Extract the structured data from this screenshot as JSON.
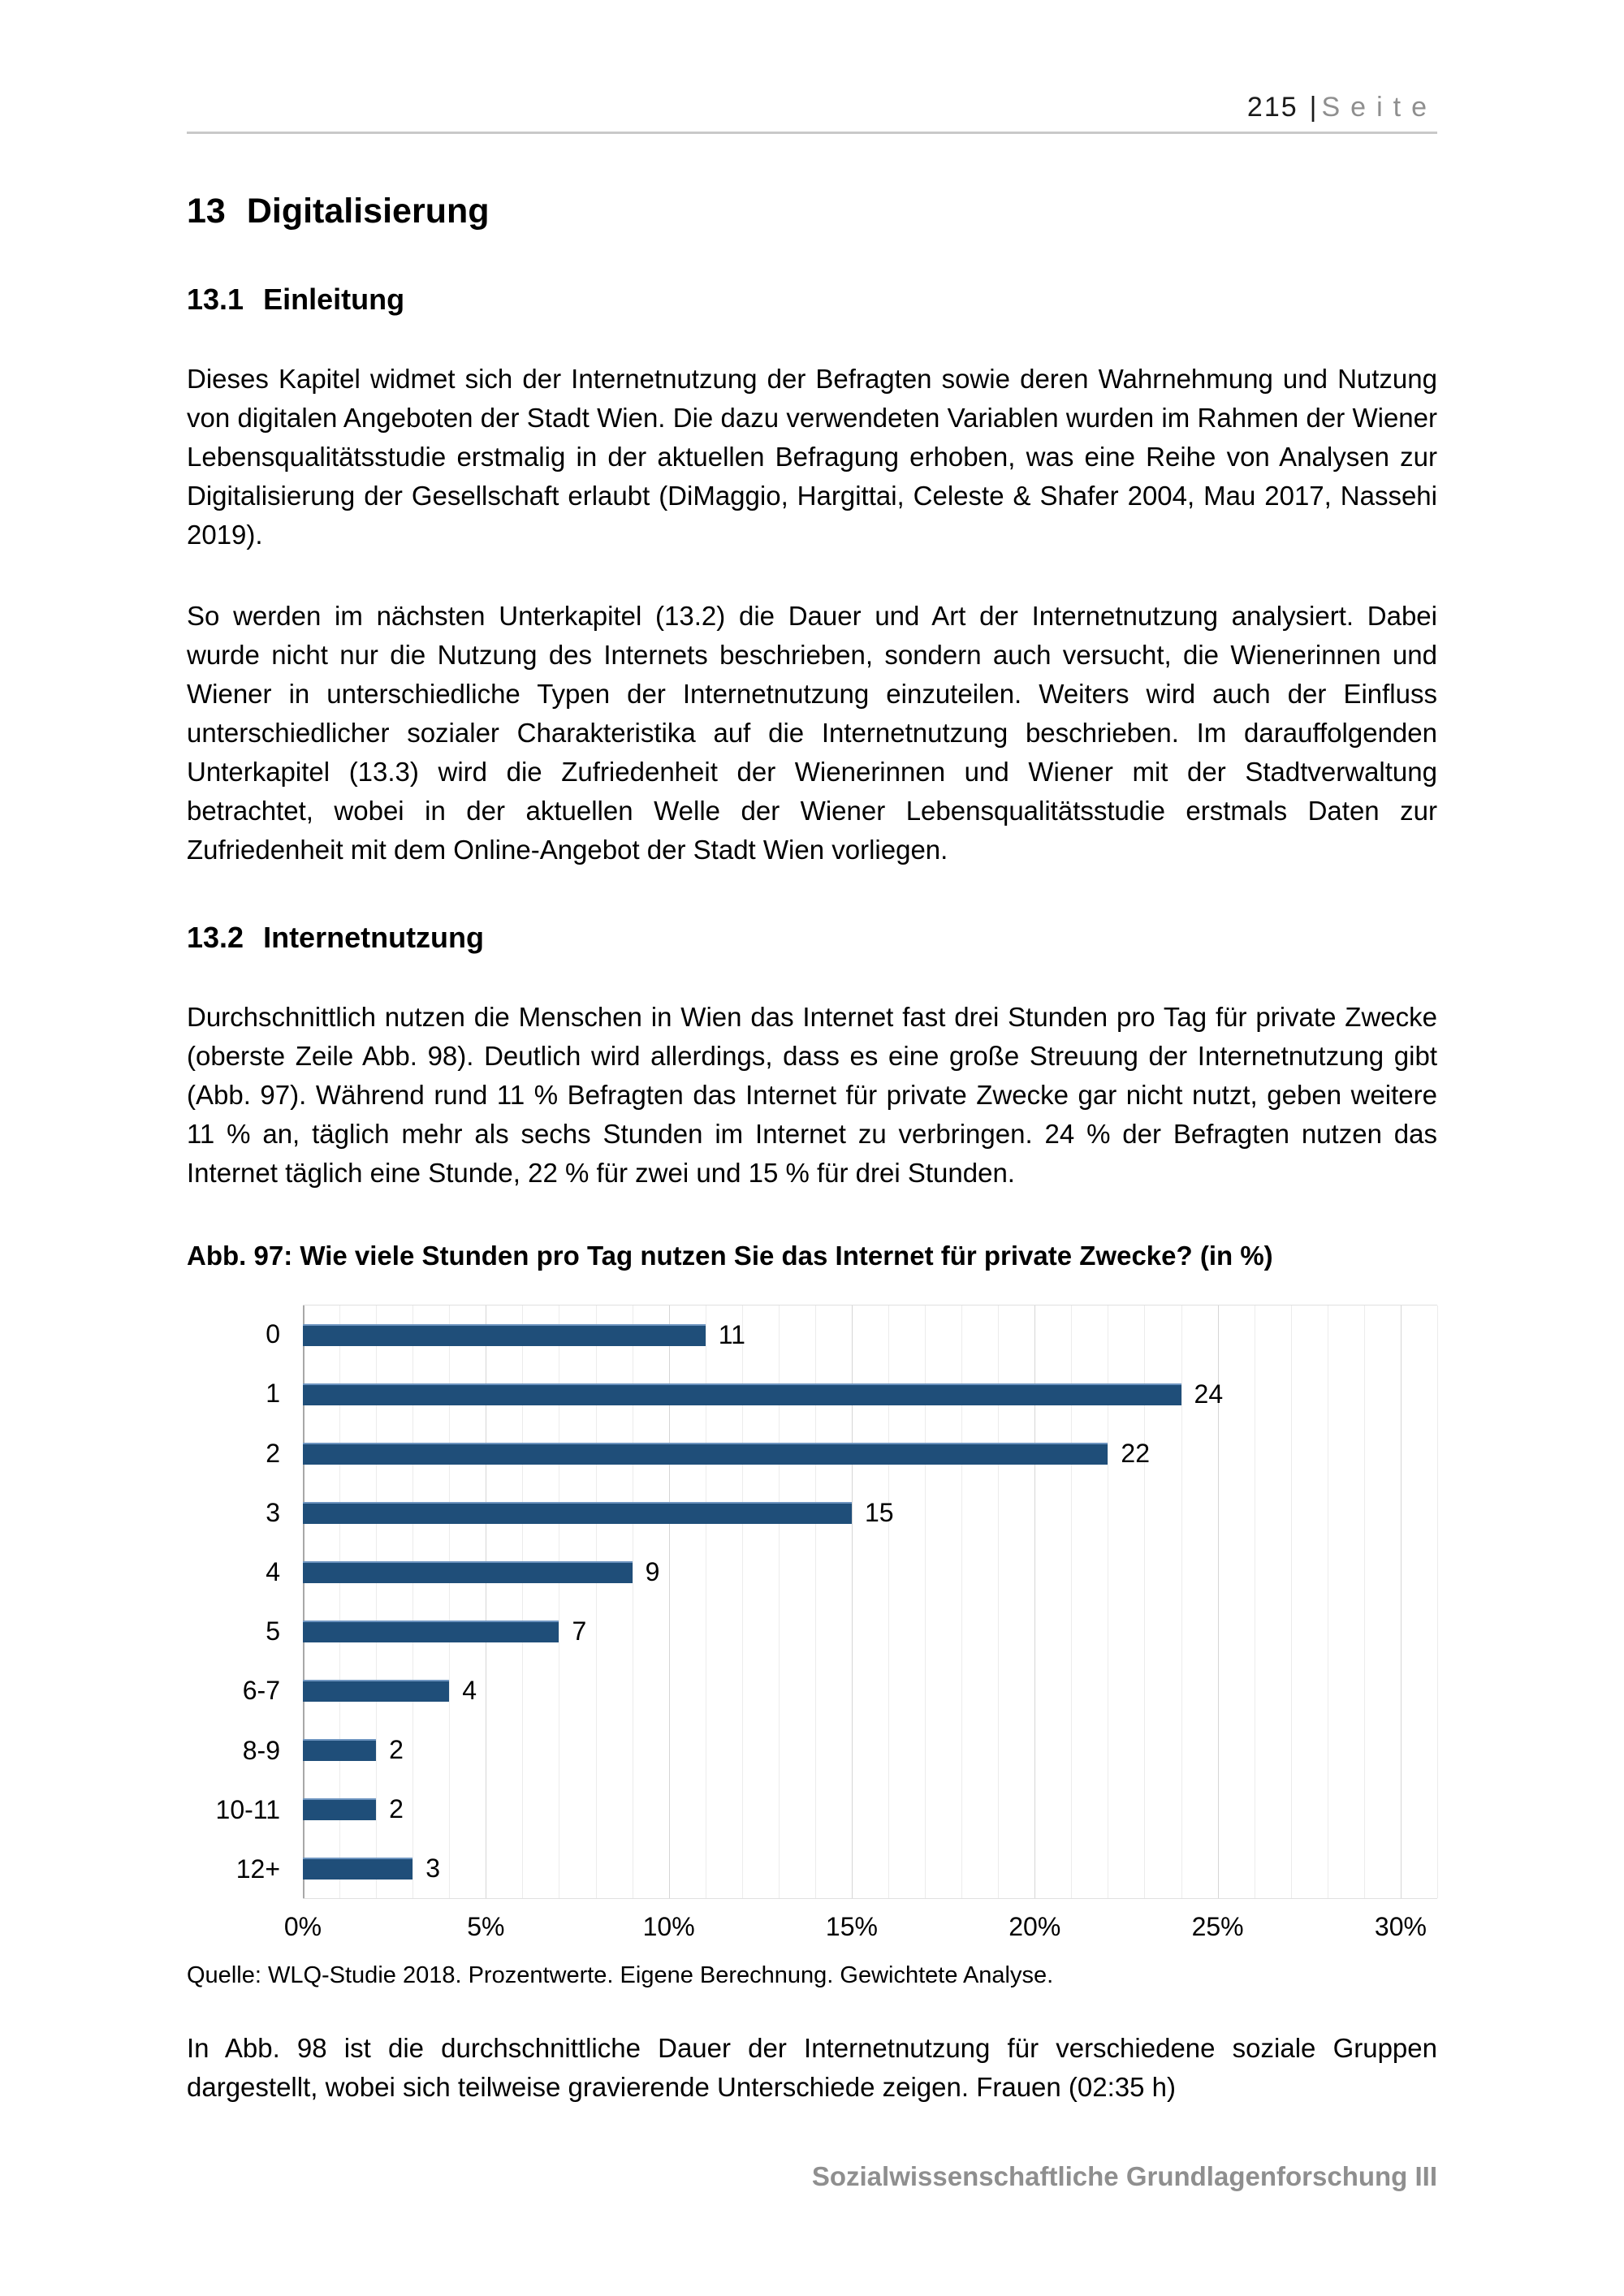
{
  "header": {
    "page_number": "215",
    "separator": "|",
    "page_word": "Seite"
  },
  "chapter": {
    "number": "13",
    "title": "Digitalisierung"
  },
  "section_einleitung": {
    "number": "13.1",
    "title": "Einleitung"
  },
  "section_internetnutzung": {
    "number": "13.2",
    "title": "Internetnutzung"
  },
  "paragraphs": {
    "p1": "Dieses Kapitel widmet sich der Internetnutzung der Befragten sowie deren Wahrnehmung und Nutzung von digitalen Angeboten der Stadt Wien. Die dazu verwendeten Variablen wurden im Rahmen der Wiener Lebensqualitätsstudie erstmalig in der aktuellen Befragung erhoben, was eine Reihe von Analysen zur Digitalisierung der Gesellschaft erlaubt (DiMaggio, Hargittai, Celeste & Shafer 2004, Mau 2017, Nassehi 2019).",
    "p2": "So werden im nächsten Unterkapitel (13.2) die Dauer und Art der Internetnutzung analysiert. Dabei wurde nicht nur die Nutzung des Internets beschrieben, sondern auch versucht, die Wienerinnen und Wiener in unterschiedliche Typen der Internetnutzung einzuteilen. Weiters wird auch der Einfluss unterschiedlicher sozialer Charakteristika auf die Internetnutzung beschrieben. Im darauffolgenden Unterkapitel (13.3) wird die Zufriedenheit der Wienerinnen und Wiener mit der Stadtverwaltung betrachtet, wobei in der aktuellen Welle der Wiener Lebensqualitätsstudie erstmals Daten zur Zufriedenheit mit dem Online-Angebot der Stadt Wien vorliegen.",
    "p3": "Durchschnittlich nutzen die Menschen in Wien das Internet fast drei Stunden pro Tag für private Zwecke (oberste Zeile Abb. 98). Deutlich wird allerdings, dass es eine große Streuung der Internetnutzung gibt (Abb. 97). Während rund 11 % Befragten das Internet für private Zwecke gar nicht nutzt, geben weitere 11 % an, täglich mehr als sechs Stunden im Internet zu verbringen. 24 % der Befragten nutzen das Internet täglich eine Stunde, 22 % für zwei und 15 % für drei Stunden.",
    "p4": "In Abb. 98 ist die durchschnittliche Dauer der Internetnutzung für verschiedene soziale Gruppen dargestellt, wobei sich teilweise gravierende Unterschiede zeigen. Frauen (02:35 h)"
  },
  "figure": {
    "title": "Abb. 97: Wie viele Stunden pro Tag nutzen Sie das Internet für private Zwecke? (in %)",
    "source": "Quelle: WLQ-Studie 2018. Prozentwerte. Eigene Berechnung. Gewichtete Analyse."
  },
  "chart_data": {
    "type": "bar",
    "orientation": "horizontal",
    "title": "Abb. 97: Wie viele Stunden pro Tag nutzen Sie das Internet für private Zwecke? (in %)",
    "categories": [
      "0",
      "1",
      "2",
      "3",
      "4",
      "5",
      "6-7",
      "8-9",
      "10-11",
      "12+"
    ],
    "values": [
      11,
      24,
      22,
      15,
      9,
      7,
      4,
      2,
      2,
      3
    ],
    "x_tick_labels": [
      "0%",
      "5%",
      "10%",
      "15%",
      "20%",
      "25%",
      "30%"
    ],
    "xlim": [
      0,
      31
    ],
    "minor_tick_step": 1,
    "major_tick_step": 5,
    "grid": true,
    "legend": false,
    "bar_color": "#1F4E79",
    "xlabel": "",
    "ylabel": ""
  },
  "footer": {
    "text": "Sozialwissenschaftliche Grundlagenforschung III"
  },
  "colors": {
    "bar": "#1F4E79",
    "bar_highlight": "#6D94BF",
    "footer_gray": "#8F8F8F",
    "rule_gray": "#C9C9C9",
    "gridline_minor": "#ECECEC",
    "gridline_major": "#D6D6D6",
    "axis_line": "#A8A8A8"
  }
}
